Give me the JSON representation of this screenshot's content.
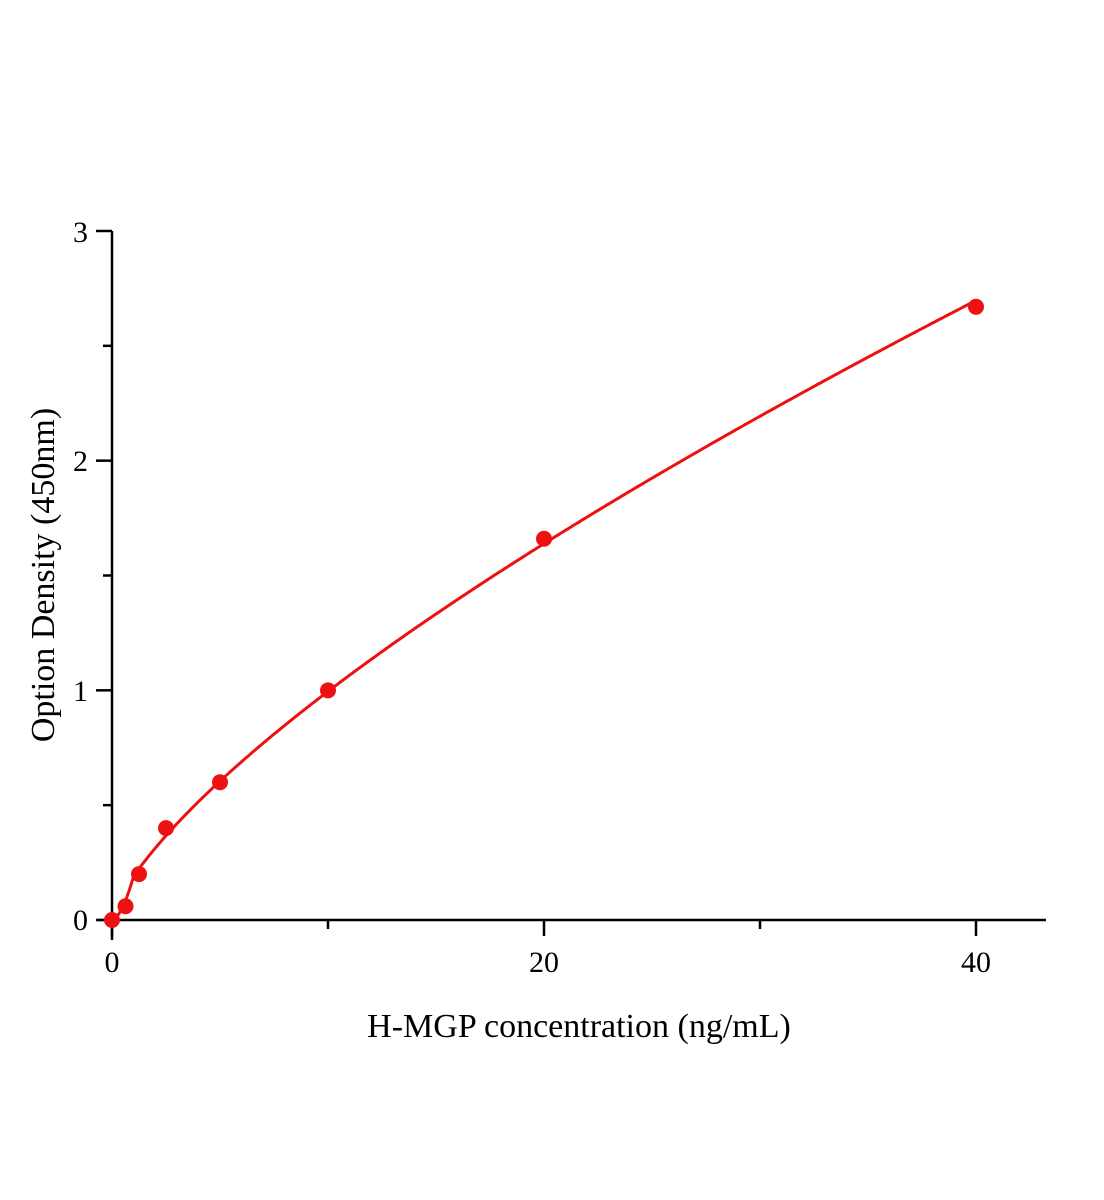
{
  "chart_data": {
    "type": "scatter",
    "title": "",
    "xlabel": "H-MGP concentration (ng/mL)",
    "ylabel": "Option Density (450nm)",
    "xlim": [
      0,
      43
    ],
    "ylim": [
      0,
      3
    ],
    "x_ticks": [
      "0",
      "20",
      "40"
    ],
    "y_ticks": [
      "0",
      "1",
      "2",
      "3"
    ],
    "grid": false,
    "legend": "none",
    "series": [
      {
        "points": [
          {
            "x": 0,
            "y": 0
          },
          {
            "x": 0.625,
            "y": 0.06
          },
          {
            "x": 1.25,
            "y": 0.2
          },
          {
            "x": 2.5,
            "y": 0.4
          },
          {
            "x": 5,
            "y": 0.6
          },
          {
            "x": 10,
            "y": 1.0
          },
          {
            "x": 20,
            "y": 1.66
          },
          {
            "x": 40,
            "y": 2.67
          }
        ],
        "fit_line": true,
        "color": "#ee1111"
      }
    ]
  }
}
